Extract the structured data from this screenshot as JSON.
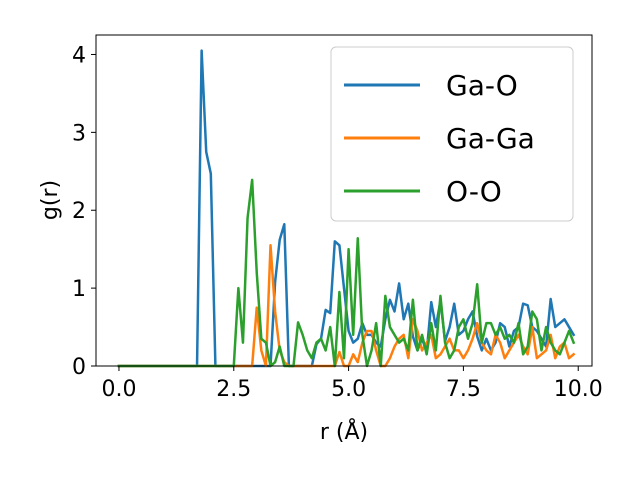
{
  "chart_data": {
    "type": "line",
    "title": "",
    "xlabel": "r (Å)",
    "ylabel": "g(r)",
    "xlim": [
      -0.5,
      10.3
    ],
    "ylim": [
      0,
      4.25
    ],
    "xticks": [
      0.0,
      2.5,
      5.0,
      7.5,
      10.0
    ],
    "xtick_labels": [
      "0.0",
      "2.5",
      "5.0",
      "7.5",
      "10.0"
    ],
    "yticks": [
      0,
      1,
      2,
      3,
      4
    ],
    "ytick_labels": [
      "0",
      "1",
      "2",
      "3",
      "4"
    ],
    "grid": false,
    "legend_position": "upper-right",
    "x": [
      0.0,
      0.1,
      0.2,
      0.3,
      0.4,
      0.5,
      0.6,
      0.7,
      0.8,
      0.9,
      1.0,
      1.1,
      1.2,
      1.3,
      1.4,
      1.5,
      1.6,
      1.7,
      1.8,
      1.9,
      2.0,
      2.1,
      2.2,
      2.3,
      2.4,
      2.5,
      2.6,
      2.7,
      2.8,
      2.9,
      3.0,
      3.1,
      3.2,
      3.3,
      3.4,
      3.5,
      3.6,
      3.7,
      3.8,
      3.9,
      4.0,
      4.1,
      4.2,
      4.3,
      4.4,
      4.5,
      4.6,
      4.7,
      4.8,
      4.9,
      5.0,
      5.1,
      5.2,
      5.3,
      5.4,
      5.5,
      5.6,
      5.7,
      5.8,
      5.9,
      6.0,
      6.1,
      6.2,
      6.3,
      6.4,
      6.5,
      6.6,
      6.7,
      6.8,
      6.9,
      7.0,
      7.1,
      7.2,
      7.3,
      7.4,
      7.5,
      7.6,
      7.7,
      7.8,
      7.9,
      8.0,
      8.1,
      8.2,
      8.3,
      8.4,
      8.5,
      8.6,
      8.7,
      8.8,
      8.9,
      9.0,
      9.1,
      9.2,
      9.3,
      9.4,
      9.5,
      9.6,
      9.7,
      9.8,
      9.9
    ],
    "series": [
      {
        "name": "Ga-O",
        "color": "#1f77b4",
        "values": [
          0,
          0,
          0,
          0,
          0,
          0,
          0,
          0,
          0,
          0,
          0,
          0,
          0,
          0,
          0,
          0,
          0,
          0,
          4.05,
          2.75,
          2.47,
          0,
          0,
          0,
          0,
          0,
          0,
          0,
          0,
          0,
          0,
          0,
          0,
          0,
          1.08,
          1.62,
          1.82,
          0,
          0,
          0,
          0,
          0,
          0,
          0.28,
          0.35,
          0.72,
          0.68,
          1.6,
          1.55,
          1.0,
          0.45,
          0.3,
          0.35,
          0.55,
          0.4,
          0.4,
          0.3,
          0.25,
          0.6,
          0.85,
          0.7,
          1.06,
          0.6,
          0.8,
          0.38,
          0.2,
          0.35,
          0.18,
          0.82,
          0.5,
          0.84,
          0.32,
          0.5,
          0.8,
          0.4,
          0.45,
          0.6,
          0.7,
          0.38,
          0.2,
          0.35,
          0.2,
          0.3,
          0.55,
          0.5,
          0.25,
          0.45,
          0.5,
          0.8,
          0.78,
          0.5,
          0.45,
          0.35,
          0.25,
          0.86,
          0.5,
          0.55,
          0.6,
          0.5,
          0.4
        ]
      },
      {
        "name": "Ga-Ga",
        "color": "#ff7f0e",
        "values": [
          0,
          0,
          0,
          0,
          0,
          0,
          0,
          0,
          0,
          0,
          0,
          0,
          0,
          0,
          0,
          0,
          0,
          0,
          0,
          0,
          0,
          0,
          0,
          0,
          0,
          0,
          0,
          0,
          0,
          0,
          0.75,
          0.2,
          0,
          1.55,
          0.7,
          0.2,
          0.05,
          0,
          0,
          0,
          0,
          0,
          0,
          0,
          0,
          0,
          0,
          0,
          0.18,
          0,
          0,
          0.15,
          0.05,
          0.3,
          0.45,
          0.45,
          0.2,
          0,
          0,
          0.1,
          0.25,
          0.35,
          0.4,
          0.1,
          0.6,
          0.45,
          0.2,
          0.3,
          0.4,
          0.1,
          0.15,
          0.25,
          0.35,
          0.2,
          0.2,
          0.1,
          0.2,
          0.35,
          0.55,
          0.3,
          0.2,
          0.15,
          0.4,
          0.3,
          0.1,
          0.2,
          0.3,
          0.4,
          0.25,
          0.15,
          0.5,
          0.1,
          0.15,
          0.2,
          0.4,
          0.1,
          0.25,
          0.3,
          0.1,
          0.15
        ]
      },
      {
        "name": "O-O",
        "color": "#2ca02c",
        "values": [
          0,
          0,
          0,
          0,
          0,
          0,
          0,
          0,
          0,
          0,
          0,
          0,
          0,
          0,
          0,
          0,
          0,
          0,
          0,
          0,
          0,
          0,
          0,
          0,
          0,
          0,
          1.0,
          0.3,
          1.9,
          2.39,
          1.2,
          0.35,
          0.3,
          0,
          0.05,
          0.25,
          0,
          0,
          0,
          0.56,
          0.4,
          0.2,
          0.1,
          0.3,
          0.35,
          0.2,
          0.5,
          0.0,
          0.95,
          0.1,
          1.5,
          0.4,
          1.64,
          0.4,
          0,
          0.2,
          0.55,
          0,
          0.9,
          0.5,
          0.4,
          0.3,
          0.35,
          0.2,
          0.85,
          0.2,
          0.4,
          0.15,
          0.55,
          0.2,
          0.9,
          0.3,
          0.1,
          0.2,
          0.5,
          0.6,
          0.35,
          0.55,
          1.05,
          0.3,
          0.55,
          0.55,
          0.4,
          0.5,
          0.35,
          0.4,
          0.3,
          0.55,
          0.15,
          0.25,
          0.7,
          0.6,
          0.2,
          0.5,
          0.3,
          0.2,
          0.15,
          0.3,
          0.45,
          0.3
        ]
      }
    ]
  }
}
